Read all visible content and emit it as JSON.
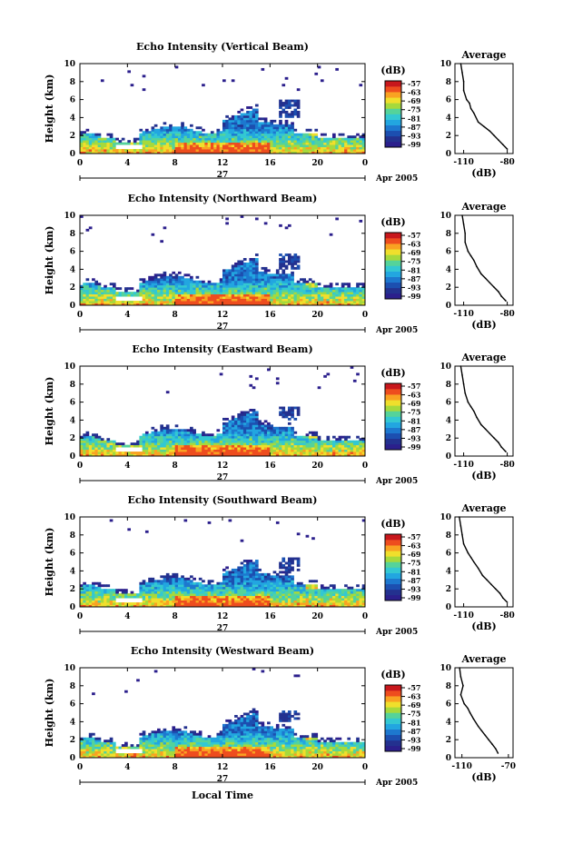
{
  "colors": {
    "colormap": [
      "#2b1f8c",
      "#23318f",
      "#1c4fb0",
      "#1d78cf",
      "#22a6e0",
      "#33c8d2",
      "#55d39a",
      "#a6d93c",
      "#f0df2c",
      "#f9a222",
      "#ee4d1e",
      "#c8171c"
    ],
    "fg": "#000000",
    "bg": "#ffffff"
  },
  "x_axis_label": "Local Time",
  "date_label": "27",
  "month_label": "Apr 2005",
  "colorbar_unit": "(dB)",
  "colorbar_ticks": [
    "-57",
    "-63",
    "-69",
    "-75",
    "-81",
    "-87",
    "-93",
    "-99"
  ],
  "chart_data": [
    {
      "type": "heatmap",
      "title": "Echo Intensity (Vertical Beam)",
      "ylabel": "Height (km)",
      "xlim": [
        0,
        24
      ],
      "ylim": [
        0,
        10
      ],
      "xticks": [
        "0",
        "4",
        "8",
        "12",
        "16",
        "20",
        "0"
      ],
      "yticks": [
        "0",
        "2",
        "4",
        "6",
        "8",
        "10"
      ]
    },
    {
      "type": "line",
      "title": "Average",
      "xlabel": "(dB)",
      "xticks": [
        "-110",
        "-80"
      ],
      "yticks": [
        "0",
        "2",
        "4",
        "6",
        "8",
        "10"
      ],
      "x": [
        -112,
        -111,
        -110,
        -110,
        -108,
        -106,
        -105,
        -103,
        -100,
        -96,
        -92,
        -89,
        -86,
        -83,
        -80
      ],
      "y": [
        10,
        9,
        8,
        7,
        6,
        5.6,
        5,
        4.5,
        3.5,
        3,
        2.5,
        2,
        1.5,
        1,
        0.5
      ]
    },
    {
      "type": "heatmap",
      "title": "Echo Intensity (Northward Beam)",
      "ylabel": "Height (km)",
      "xlim": [
        0,
        24
      ],
      "ylim": [
        0,
        10
      ],
      "xticks": [
        "0",
        "4",
        "8",
        "12",
        "16",
        "20",
        "0"
      ],
      "yticks": [
        "0",
        "2",
        "4",
        "6",
        "8",
        "10"
      ]
    },
    {
      "type": "line",
      "title": "Average",
      "xlabel": "(dB)",
      "xticks": [
        "-110",
        "-80"
      ],
      "yticks": [
        "0",
        "2",
        "4",
        "6",
        "8",
        "10"
      ],
      "x": [
        -111,
        -110,
        -109,
        -109,
        -107,
        -105,
        -103,
        -101,
        -98,
        -95,
        -92,
        -89,
        -86,
        -84,
        -81
      ],
      "y": [
        10,
        9,
        8,
        7,
        6,
        5.5,
        5,
        4.3,
        3.5,
        3,
        2.5,
        2,
        1.5,
        1,
        0.5
      ]
    },
    {
      "type": "heatmap",
      "title": "Echo Intensity (Eastward Beam)",
      "ylabel": "Height (km)",
      "xlim": [
        0,
        24
      ],
      "ylim": [
        0,
        10
      ],
      "xticks": [
        "0",
        "4",
        "8",
        "12",
        "16",
        "20",
        "0"
      ],
      "yticks": [
        "0",
        "2",
        "4",
        "6",
        "8",
        "10"
      ]
    },
    {
      "type": "line",
      "title": "Average",
      "xlabel": "(dB)",
      "xticks": [
        "-110",
        "-80"
      ],
      "yticks": [
        "0",
        "2",
        "4",
        "6",
        "8",
        "10"
      ],
      "x": [
        -112,
        -111,
        -110,
        -109,
        -107,
        -105,
        -103,
        -101,
        -98,
        -95,
        -92,
        -89,
        -86,
        -84,
        -81
      ],
      "y": [
        10,
        9,
        8,
        7,
        6,
        5.5,
        5,
        4.3,
        3.5,
        3,
        2.5,
        2,
        1.5,
        1,
        0.5
      ]
    },
    {
      "type": "heatmap",
      "title": "Echo Intensity (Southward Beam)",
      "ylabel": "Height (km)",
      "xlim": [
        0,
        24
      ],
      "ylim": [
        0,
        10
      ],
      "xticks": [
        "0",
        "4",
        "8",
        "12",
        "16",
        "20",
        "0"
      ],
      "yticks": [
        "0",
        "2",
        "4",
        "6",
        "8",
        "10"
      ]
    },
    {
      "type": "line",
      "title": "Average",
      "xlabel": "(dB)",
      "xticks": [
        "-110",
        "-80"
      ],
      "yticks": [
        "0",
        "2",
        "4",
        "6",
        "8",
        "10"
      ],
      "x": [
        -113,
        -112,
        -111,
        -110,
        -107,
        -105,
        -103,
        -100,
        -97,
        -94,
        -91,
        -88,
        -85,
        -83,
        -80
      ],
      "y": [
        10,
        9,
        8,
        7,
        6,
        5.5,
        5,
        4.3,
        3.5,
        3,
        2.5,
        2,
        1.5,
        1,
        0.5
      ]
    },
    {
      "type": "heatmap",
      "title": "Echo Intensity (Westward Beam)",
      "ylabel": "Height (km)",
      "xlim": [
        0,
        24
      ],
      "ylim": [
        0,
        10
      ],
      "xticks": [
        "0",
        "4",
        "8",
        "12",
        "16",
        "20",
        "0"
      ],
      "yticks": [
        "0",
        "2",
        "4",
        "6",
        "8",
        "10"
      ]
    },
    {
      "type": "line",
      "title": "Average",
      "xlabel": "(dB)",
      "xticks": [
        "-110",
        "-70"
      ],
      "yticks": [
        "0",
        "2",
        "4",
        "6",
        "8",
        "10"
      ],
      "x": [
        -112,
        -111,
        -109,
        -111,
        -108,
        -105,
        -103,
        -100,
        -96,
        -93,
        -90,
        -87,
        -84,
        -81,
        -79
      ],
      "y": [
        10,
        9,
        8,
        7,
        6,
        5.5,
        5,
        4.3,
        3.5,
        3,
        2.5,
        2,
        1.5,
        1,
        0.5
      ]
    }
  ]
}
